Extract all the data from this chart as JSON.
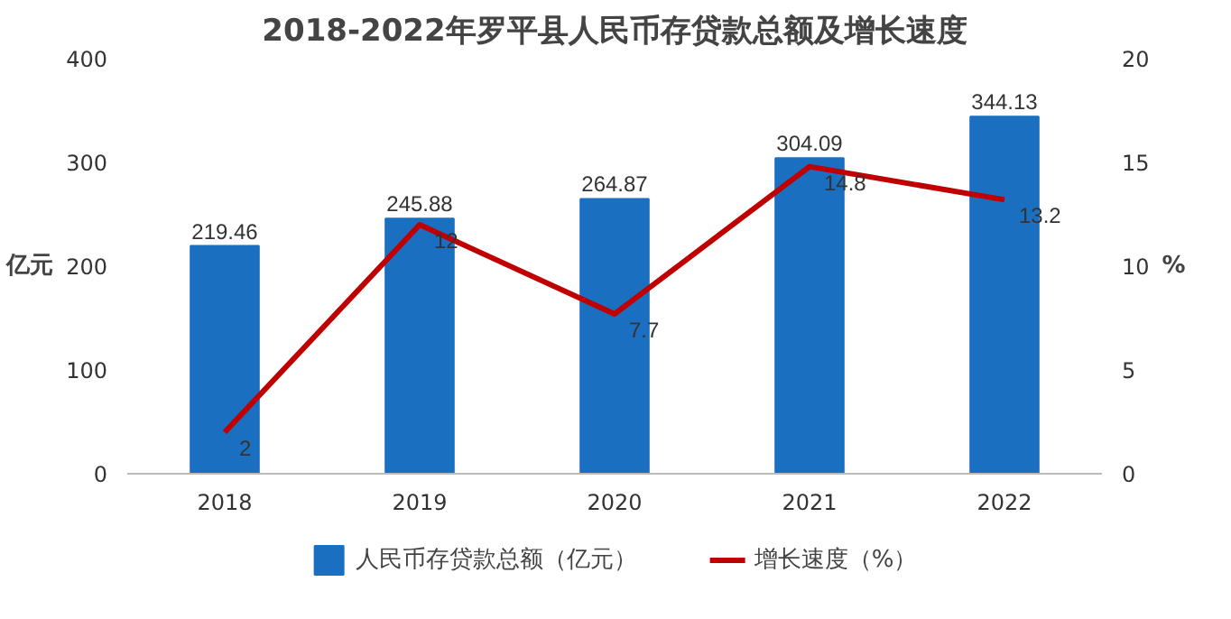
{
  "chart_data": {
    "type": "bar",
    "title": "2018-2022年罗平县人民币存贷款总额及增长速度",
    "ylabel": "亿元",
    "y2label": "%",
    "categories": [
      "2018",
      "2019",
      "2020",
      "2021",
      "2022"
    ],
    "series": [
      {
        "name": "人民币存贷款总额（亿元）",
        "color": "#1a6fc0",
        "values": [
          219.46,
          245.88,
          264.87,
          304.09,
          344.13
        ]
      },
      {
        "name": "增长速度（%）",
        "type": "line",
        "axis": "y2",
        "color": "#c00000",
        "values": [
          2,
          12,
          7.7,
          14.8,
          13.2
        ]
      }
    ],
    "ylim": [
      0,
      400
    ],
    "yticks": [
      0,
      100,
      200,
      300,
      400
    ],
    "y2lim": [
      0,
      20
    ],
    "y2ticks": [
      0,
      5,
      10,
      15,
      20
    ],
    "data_labels": true,
    "legend": "bottom",
    "grid": false
  }
}
